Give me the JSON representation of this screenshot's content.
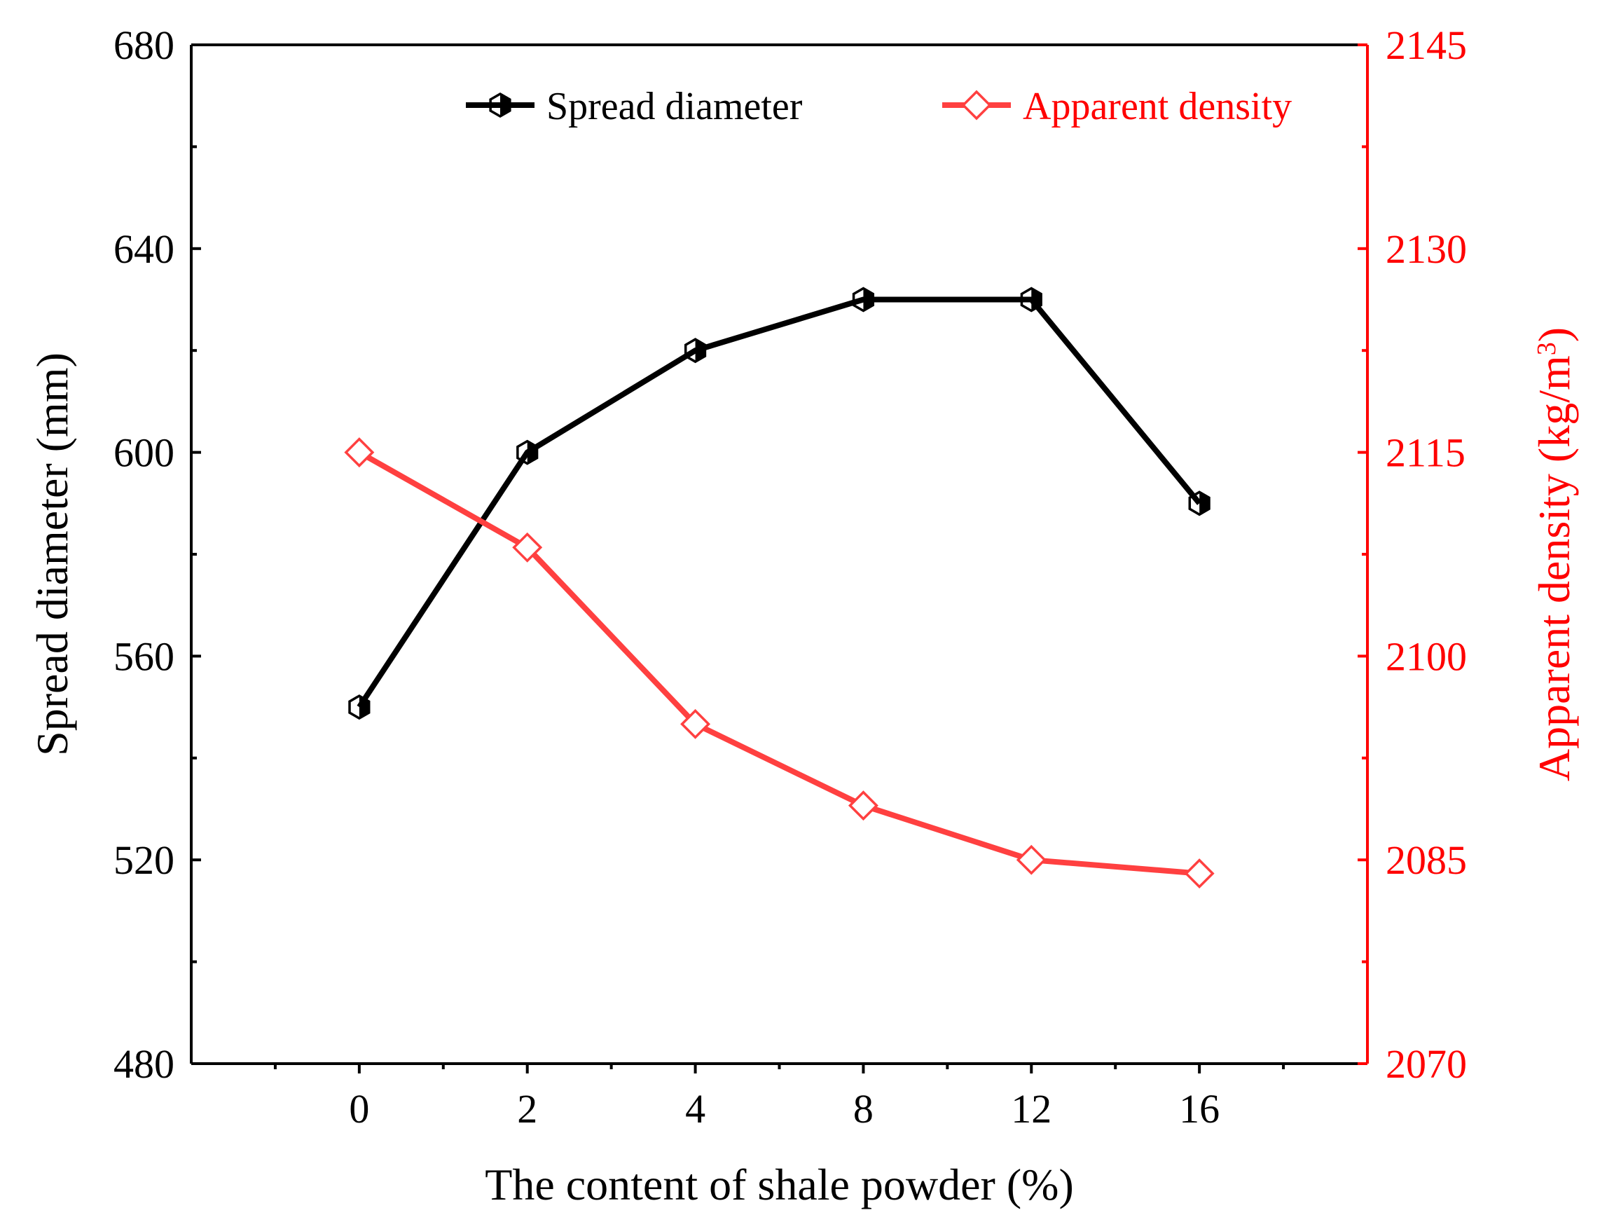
{
  "chart_data": {
    "type": "line",
    "title": "",
    "xlabel": "The content of shale powder (%)",
    "categories": [
      "0",
      "2",
      "4",
      "8",
      "12",
      "16"
    ],
    "y_left": {
      "label": "Spread diameter (mm)",
      "range": [
        480,
        680
      ],
      "ticks": [
        480,
        520,
        560,
        600,
        640,
        680
      ]
    },
    "y_right": {
      "label_main": "Apparent density (kg/m",
      "label_sup": "3",
      "label_close": ")",
      "range": [
        2070,
        2145
      ],
      "ticks": [
        2070,
        2085,
        2100,
        2115,
        2130,
        2145
      ]
    },
    "series": [
      {
        "name": "Spread diameter",
        "axis": "left",
        "color": "#000000",
        "marker": "half-filled-hexagon",
        "values": [
          550,
          600,
          620,
          630,
          630,
          590
        ]
      },
      {
        "name": "Apparent density",
        "axis": "right",
        "color": "#ff4040",
        "marker": "open-diamond",
        "values": [
          2115,
          2108,
          2095,
          2089,
          2085,
          2084
        ]
      }
    ],
    "legend_position": "top",
    "grid": false,
    "colors": {
      "left_axis": "#000000",
      "right_axis": "#ff0000"
    }
  }
}
